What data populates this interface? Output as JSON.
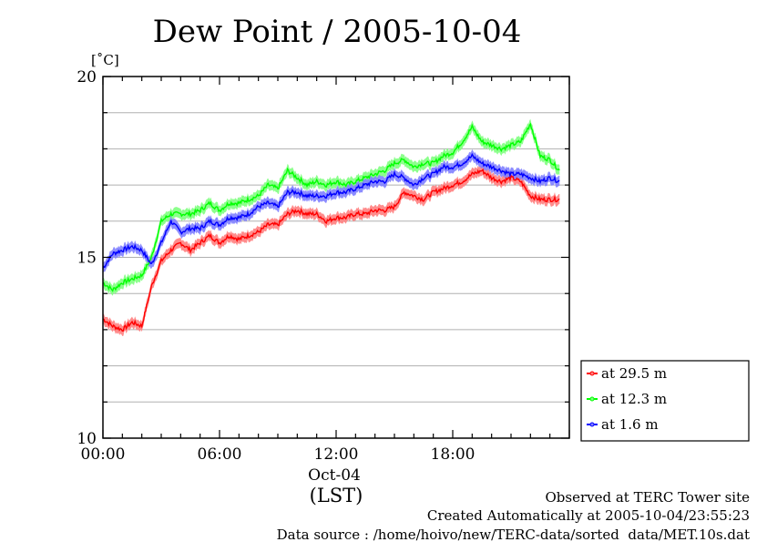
{
  "chart_data": {
    "type": "line",
    "title": "Dew Point / 2005-10-04",
    "ylabel": "[˚C]",
    "xlabel": "(LST)",
    "x_date_label": "Oct-04",
    "ylim": [
      10,
      20
    ],
    "yticks": [
      "10",
      "15",
      "20"
    ],
    "xlim": [
      0,
      24
    ],
    "xticks": [
      {
        "value": 0,
        "label": "00:00"
      },
      {
        "value": 6,
        "label": "06:00"
      },
      {
        "value": 12,
        "label": "12:00"
      },
      {
        "value": 18,
        "label": "18:00"
      }
    ],
    "grid": true,
    "legend_position": "outside-right-bottom",
    "x_hours": [
      0,
      0.5,
      1,
      1.5,
      2,
      2.5,
      3,
      3.5,
      4,
      4.5,
      5,
      5.5,
      6,
      6.5,
      7,
      7.5,
      8,
      8.5,
      9,
      9.5,
      10,
      10.5,
      11,
      11.5,
      12,
      12.5,
      13,
      13.5,
      14,
      14.5,
      15,
      15.5,
      16,
      16.5,
      17,
      17.5,
      18,
      18.5,
      19,
      19.5,
      20,
      20.5,
      21,
      21.5,
      22,
      22.5,
      23,
      23.5
    ],
    "series": [
      {
        "name": "at 29.5 m",
        "color": "#ff0000",
        "band_color": "#ff8080",
        "values": [
          13.3,
          13.1,
          13.0,
          13.2,
          13.1,
          14.2,
          14.9,
          15.2,
          15.4,
          15.2,
          15.4,
          15.6,
          15.4,
          15.6,
          15.5,
          15.6,
          15.7,
          15.9,
          15.9,
          16.2,
          16.3,
          16.2,
          16.2,
          16.0,
          16.1,
          16.1,
          16.2,
          16.2,
          16.3,
          16.3,
          16.4,
          16.8,
          16.7,
          16.6,
          16.8,
          16.9,
          17.0,
          17.1,
          17.3,
          17.4,
          17.2,
          17.1,
          17.2,
          17.1,
          16.7,
          16.6,
          16.6,
          16.6
        ]
      },
      {
        "name": "at 12.3 m",
        "color": "#00ff00",
        "band_color": "#80ff80",
        "values": [
          14.3,
          14.1,
          14.3,
          14.4,
          14.5,
          15.0,
          16.0,
          16.2,
          16.2,
          16.2,
          16.3,
          16.5,
          16.3,
          16.5,
          16.5,
          16.6,
          16.7,
          17.0,
          16.9,
          17.4,
          17.2,
          17.0,
          17.1,
          17.0,
          17.1,
          17.0,
          17.1,
          17.2,
          17.3,
          17.4,
          17.6,
          17.7,
          17.5,
          17.6,
          17.6,
          17.8,
          17.9,
          18.2,
          18.6,
          18.2,
          18.1,
          18.0,
          18.1,
          18.2,
          18.7,
          17.8,
          17.7,
          17.4
        ]
      },
      {
        "name": "at 1.6 m",
        "color": "#0000ff",
        "band_color": "#8080ff",
        "values": [
          14.7,
          15.1,
          15.2,
          15.3,
          15.2,
          14.8,
          15.4,
          16.0,
          15.7,
          15.8,
          15.8,
          16.0,
          15.9,
          16.1,
          16.1,
          16.2,
          16.4,
          16.5,
          16.4,
          16.8,
          16.8,
          16.7,
          16.7,
          16.7,
          16.8,
          16.8,
          16.9,
          17.0,
          17.1,
          17.1,
          17.3,
          17.2,
          17.0,
          17.2,
          17.3,
          17.5,
          17.5,
          17.6,
          17.8,
          17.6,
          17.5,
          17.4,
          17.3,
          17.3,
          17.2,
          17.1,
          17.2,
          17.1
        ]
      }
    ]
  },
  "footer": {
    "site": "Observed at TERC Tower site",
    "created": "Created Automatically at 2005-10-04/23:55:23",
    "source": "Data source : /home/hoivo/new/TERC-data/sorted  data/MET.10s.dat"
  }
}
